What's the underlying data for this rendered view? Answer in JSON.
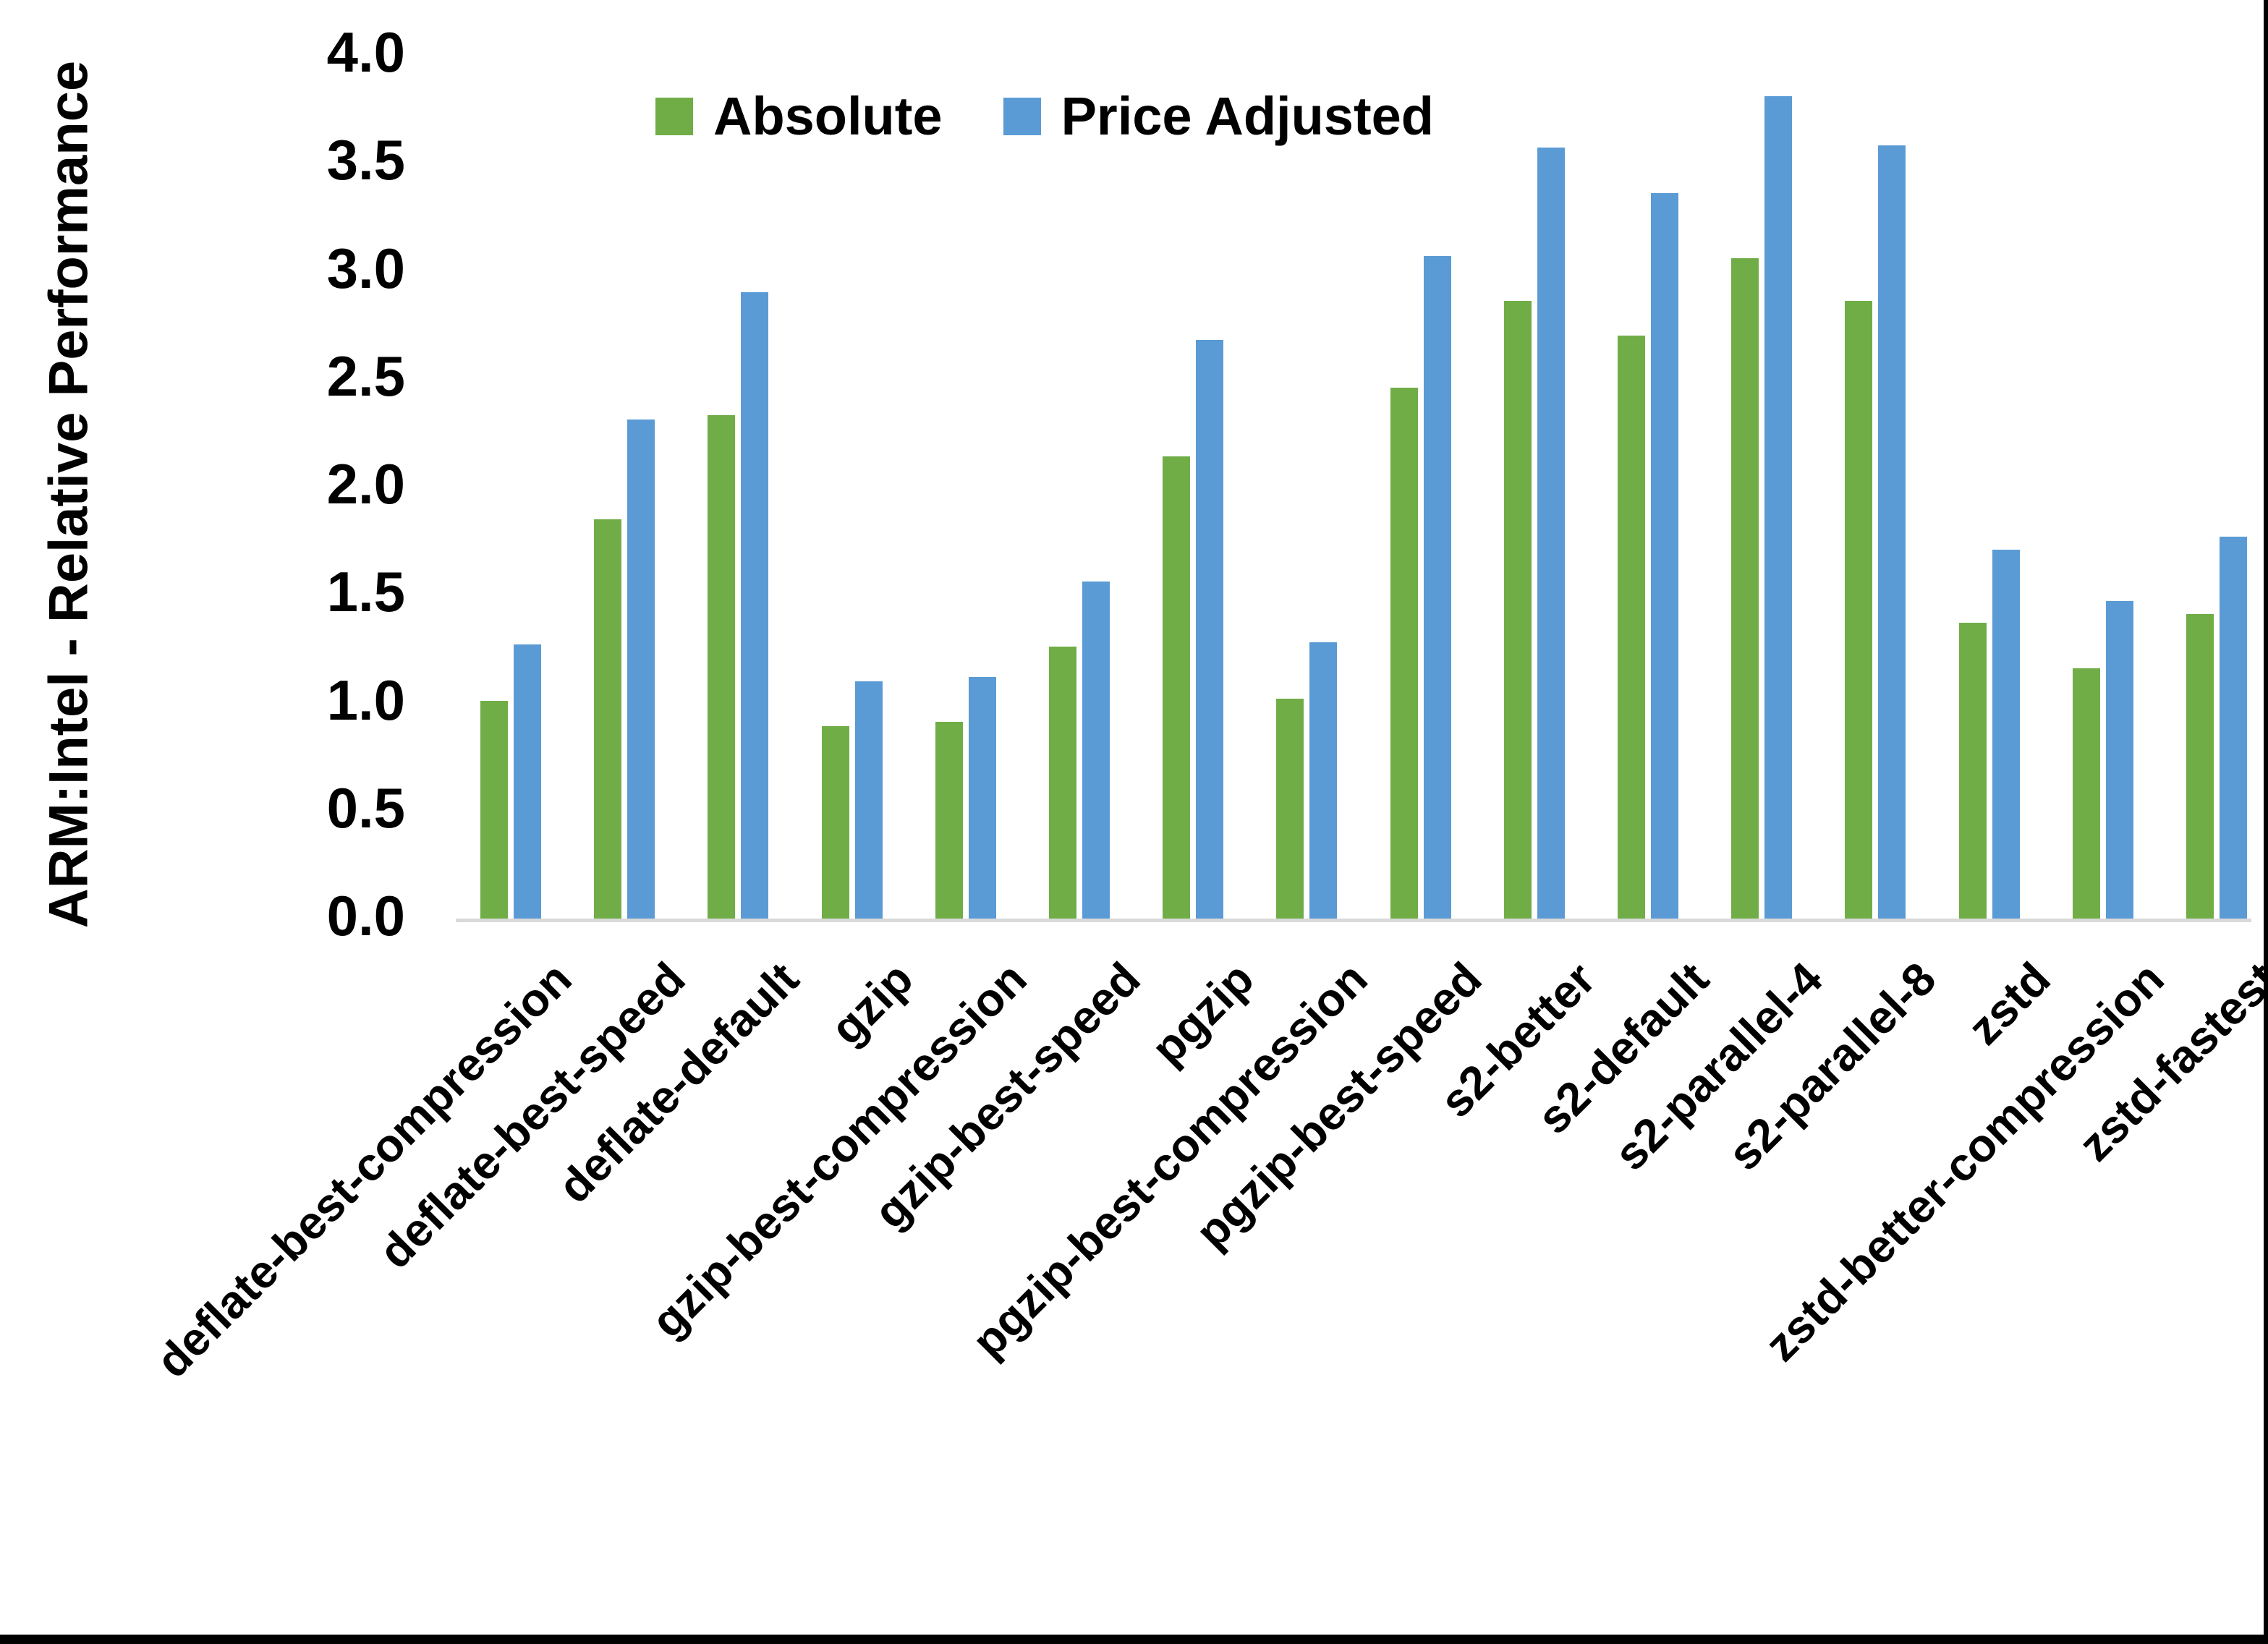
{
  "chart_data": {
    "type": "bar",
    "title": "",
    "ylabel": "ARM:Intel - Relative Performance",
    "xlabel": "",
    "ylim": [
      0.0,
      4.0
    ],
    "ytick_step": 0.5,
    "ytick_labels": [
      "0.0",
      "0.5",
      "1.0",
      "1.5",
      "2.0",
      "2.5",
      "3.0",
      "3.5",
      "4.0"
    ],
    "grid": false,
    "legend_position": "top-center",
    "categories": [
      "deflate-best-compression",
      "deflate-best-speed",
      "deflate-default",
      "gzip",
      "gzip-best-compression",
      "gzip-best-speed",
      "pgzip",
      "pgzip-best-compression",
      "pgzip-best-speed",
      "s2-better",
      "s2-default",
      "s2-parallel-4",
      "s2-parallel-8",
      "zstd",
      "zstd-better-compression",
      "zstd-fastest"
    ],
    "series": [
      {
        "name": "Absolute",
        "color": "#70AD47",
        "values": [
          1.01,
          1.85,
          2.33,
          0.89,
          0.91,
          1.26,
          2.14,
          1.02,
          2.46,
          2.86,
          2.7,
          3.06,
          2.86,
          1.37,
          1.16,
          1.41
        ]
      },
      {
        "name": "Price Adjusted",
        "color": "#5B9BD5",
        "values": [
          1.27,
          2.31,
          2.9,
          1.1,
          1.12,
          1.56,
          2.68,
          1.28,
          3.07,
          3.57,
          3.36,
          3.81,
          3.58,
          1.71,
          1.47,
          1.77
        ]
      }
    ]
  },
  "colors": {
    "background": "#FFFFFF",
    "axis_line": "#D9D9D9",
    "text": "#000000",
    "frame_border": "#000000"
  }
}
